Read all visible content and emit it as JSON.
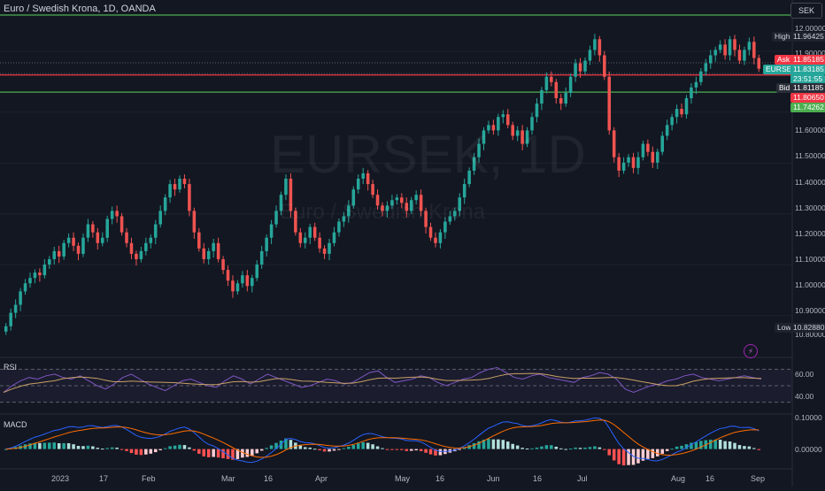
{
  "header": {
    "title": "Euro / Swedish Krona, 1D, OANDA",
    "currency": "SEK"
  },
  "watermark": {
    "symbol": "EURSEK, 1D",
    "description": "Euro / Swedish Krona"
  },
  "colors": {
    "background": "#131722",
    "up": "#26a69a",
    "down": "#ef5350",
    "grid": "#1e222d",
    "rsi_line": "#7e57c2",
    "rsi_ma": "#c8a165",
    "macd_line": "#2962ff",
    "signal_line": "#ff6d00",
    "level_green": "#4caf50",
    "level_red": "#f23645"
  },
  "chart_data": {
    "type": "candlestick",
    "symbol": "EURSEK",
    "interval": "1D",
    "source": "OANDA",
    "x_tick_labels": [
      "2023",
      "17",
      "Feb",
      "Mar",
      "16",
      "Apr",
      "May",
      "16",
      "Jun",
      "16",
      "Jul",
      "Aug",
      "16",
      "Sep"
    ],
    "y_tick_labels": [
      "12.00000",
      "11.90000",
      "11.60000",
      "11.50000",
      "11.40000",
      "11.30000",
      "11.20000",
      "11.10000",
      "11.00000",
      "10.90000",
      "10.80000"
    ],
    "ylim": [
      10.8,
      12.03
    ],
    "price_tags": {
      "high": {
        "label": "High",
        "value": "11.96425"
      },
      "ask": {
        "label": "Ask",
        "value": "11.85185"
      },
      "last": {
        "label": "EURSEK",
        "value": "11.83185",
        "countdown": "23:51:55"
      },
      "bid": {
        "label": "Bid",
        "value": "11.81185"
      },
      "red_level": {
        "value": "11.80650"
      },
      "green_level": {
        "value": "11.74262"
      },
      "low": {
        "label": "Low",
        "value": "10.82880"
      }
    },
    "horizontal_levels": [
      {
        "color": "green",
        "value": 12.03
      },
      {
        "color": "red",
        "value": 11.8065
      },
      {
        "color": "green",
        "value": 11.7426
      }
    ],
    "candles_close_approx": [
      10.87,
      10.92,
      10.95,
      11.0,
      11.03,
      11.05,
      11.07,
      11.06,
      11.1,
      11.12,
      11.15,
      11.13,
      11.18,
      11.2,
      11.17,
      11.14,
      11.2,
      11.25,
      11.22,
      11.18,
      11.2,
      11.27,
      11.3,
      11.28,
      11.22,
      11.18,
      11.14,
      11.12,
      11.15,
      11.18,
      11.2,
      11.25,
      11.3,
      11.35,
      11.4,
      11.38,
      11.42,
      11.4,
      11.3,
      11.22,
      11.16,
      11.12,
      11.15,
      11.18,
      11.12,
      11.08,
      11.04,
      11.0,
      11.03,
      11.06,
      11.02,
      11.05,
      11.1,
      11.15,
      11.2,
      11.25,
      11.3,
      11.36,
      11.42,
      11.3,
      11.22,
      11.18,
      11.2,
      11.24,
      11.2,
      11.16,
      11.14,
      11.18,
      11.22,
      11.26,
      11.28,
      11.32,
      11.38,
      11.42,
      11.44,
      11.4,
      11.36,
      11.32,
      11.3,
      11.32,
      11.34,
      11.35,
      11.33,
      11.3,
      11.34,
      11.36,
      11.3,
      11.24,
      11.2,
      11.18,
      11.22,
      11.26,
      11.28,
      11.3,
      11.35,
      11.4,
      11.45,
      11.5,
      11.55,
      11.6,
      11.62,
      11.6,
      11.65,
      11.66,
      11.62,
      11.58,
      11.6,
      11.55,
      11.6,
      11.65,
      11.7,
      11.75,
      11.8,
      11.78,
      11.72,
      11.7,
      11.74,
      11.8,
      11.85,
      11.82,
      11.86,
      11.9,
      11.94,
      11.88,
      11.8,
      11.6,
      11.5,
      11.45,
      11.48,
      11.5,
      11.46,
      11.5,
      11.55,
      11.52,
      11.48,
      11.52,
      11.58,
      11.62,
      11.65,
      11.68,
      11.66,
      11.72,
      11.76,
      11.78,
      11.82,
      11.85,
      11.88,
      11.9,
      11.92,
      11.88,
      11.94,
      11.9,
      11.86,
      11.9,
      11.93,
      11.87,
      11.83
    ],
    "rsi": {
      "label": "RSI",
      "ticks": [
        "60.00",
        "40.00"
      ],
      "bands": [
        70,
        50,
        30
      ],
      "values_approx": [
        42,
        50,
        56,
        60,
        58,
        62,
        64,
        60,
        58,
        62,
        56,
        50,
        46,
        52,
        60,
        64,
        58,
        52,
        48,
        44,
        50,
        56,
        58,
        54,
        50,
        48,
        56,
        62,
        58,
        52,
        58,
        64,
        60,
        56,
        52,
        48,
        50,
        54,
        58,
        56,
        52,
        54,
        60,
        66,
        68,
        60,
        54,
        56,
        58,
        62,
        60,
        54,
        50,
        54,
        58,
        60,
        66,
        70,
        72,
        66,
        60,
        58,
        62,
        64,
        60,
        58,
        56,
        54,
        60,
        62,
        66,
        64,
        58,
        46,
        42,
        46,
        50,
        52,
        56,
        58,
        62,
        64,
        60,
        58,
        56,
        58,
        60,
        62,
        60,
        58
      ]
    },
    "macd": {
      "label": "MACD",
      "ticks": [
        "0.10000",
        "0.00000"
      ],
      "ylim": [
        -0.06,
        0.11
      ]
    }
  },
  "x_axis": [
    "2023",
    "17",
    "Feb",
    "Mar",
    "16",
    "Apr",
    "May",
    "16",
    "Jun",
    "16",
    "Jul",
    "Aug",
    "16",
    "Sep"
  ]
}
